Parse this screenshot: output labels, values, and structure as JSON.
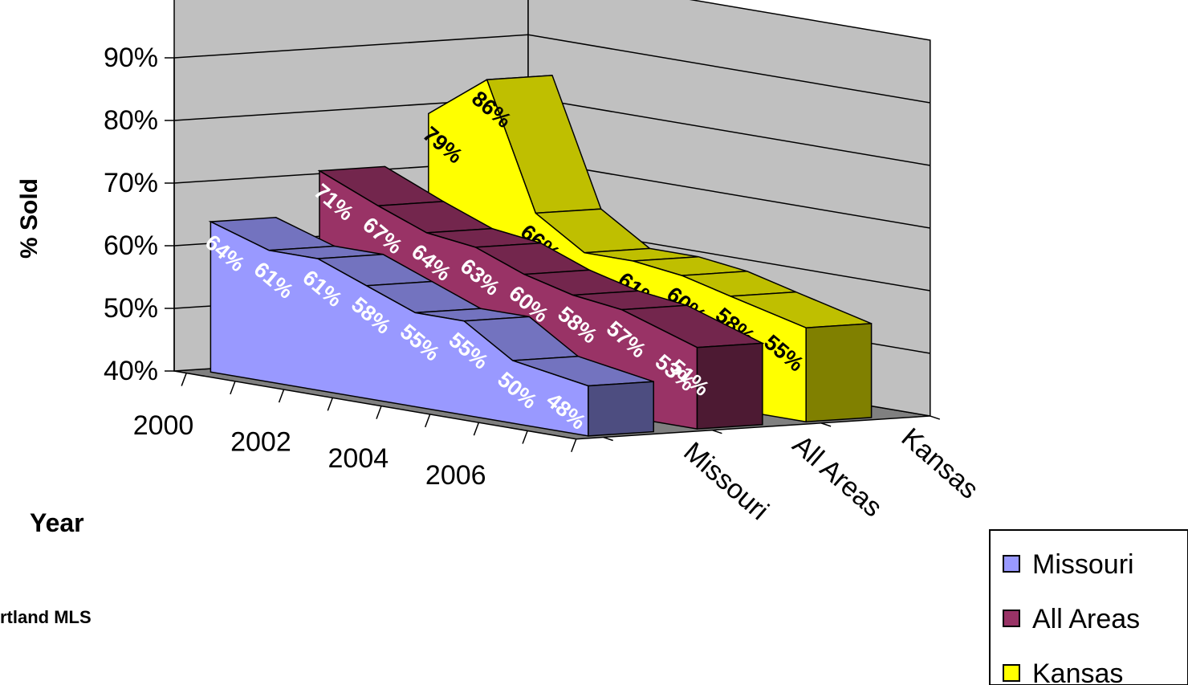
{
  "chart_data": {
    "type": "area",
    "variant": "3d-area",
    "ylabel": "% Sold",
    "xlabel": "Year",
    "ylim": [
      0.4,
      0.9
    ],
    "yticks": [
      "40%",
      "50%",
      "60%",
      "70%",
      "80%",
      "90%"
    ],
    "xtick_labels": [
      "2000",
      "2002",
      "2004",
      "2006"
    ],
    "x": [
      2000,
      2001,
      2002,
      2003,
      2004,
      2005,
      2006,
      2007
    ],
    "depth_categories": [
      "Missouri",
      "All Areas",
      "Kansas"
    ],
    "series": [
      {
        "name": "Missouri",
        "color": "#9999ff",
        "label_color": "#ffffff",
        "values": [
          0.64,
          0.61,
          0.61,
          0.58,
          0.55,
          0.55,
          0.5,
          0.48
        ],
        "labels": [
          "64%",
          "61%",
          "61%",
          "58%",
          "55%",
          "55%",
          "50%",
          "48%"
        ]
      },
      {
        "name": "All Areas",
        "color": "#993366",
        "label_color": "#ffffff",
        "values": [
          0.71,
          0.67,
          0.64,
          0.63,
          0.6,
          0.58,
          0.57,
          0.53
        ],
        "labels": [
          "71%",
          "67%",
          "64%",
          "63%",
          "60%",
          "58%",
          "57%",
          "53%"
        ]
      },
      {
        "name": "Kansas",
        "color": "#ffff00",
        "label_color": "#000000",
        "values": [
          0.79,
          0.86,
          0.66,
          0.61,
          0.61,
          0.6,
          0.58,
          0.55
        ],
        "labels": [
          "79%",
          "86%",
          "66%",
          "61%",
          "61%",
          "60%",
          "58%",
          "55%"
        ]
      }
    ],
    "extra_label": {
      "series": "All Areas",
      "text": "51%"
    },
    "legend": {
      "position": "bottom-right",
      "entries": [
        "Missouri",
        "All Areas",
        "Kansas"
      ]
    },
    "grid": true,
    "wall_color": "#c0c0c0",
    "floor_color": "#808080"
  },
  "source_text": "rtland MLS"
}
